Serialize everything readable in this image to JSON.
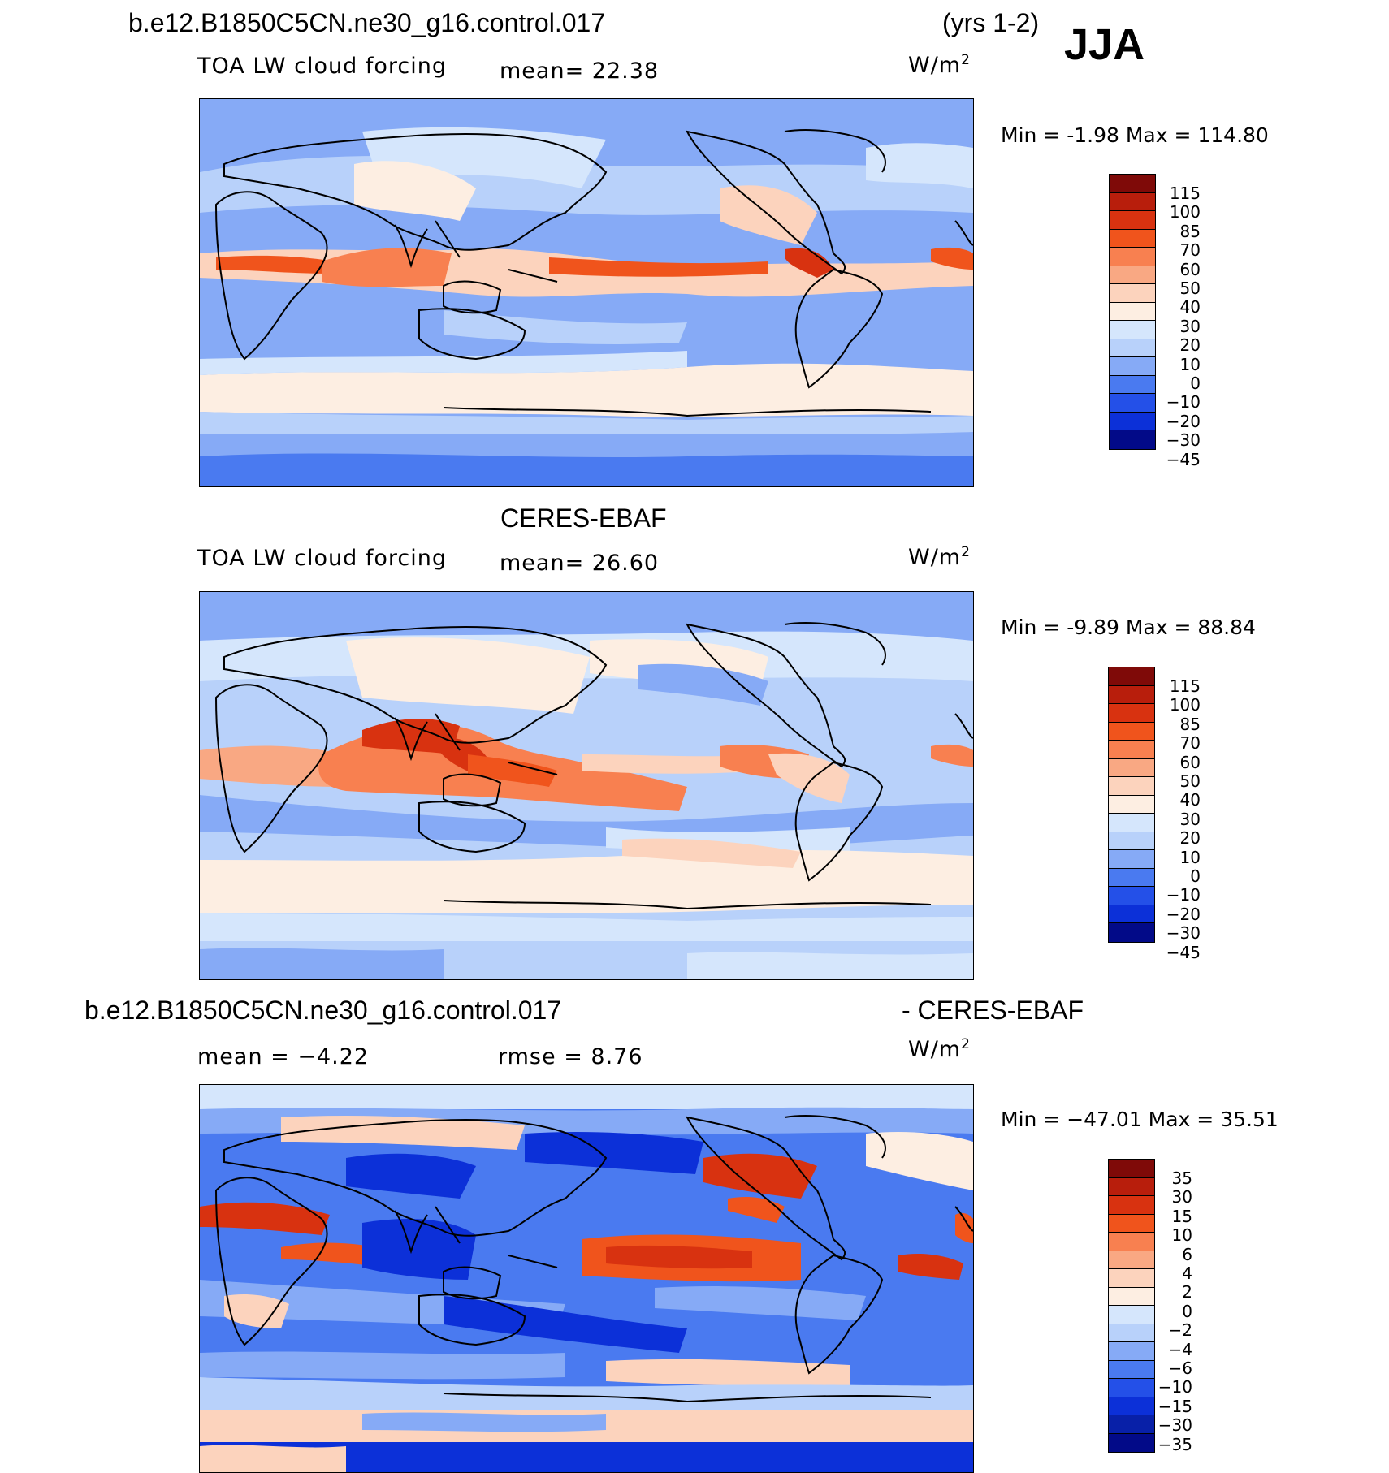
{
  "header": {
    "case_name": "b.e12.B1850C5CN.ne30_g16.control.017",
    "years": "(yrs 1-2)",
    "season": "JJA"
  },
  "panels": [
    {
      "title": "",
      "variable": "TOA LW cloud forcing",
      "stat": "mean=   22.38",
      "units": "W/m",
      "minmax": "Min =   -1.98  Max  =  114.80",
      "colorbar_labels": [
        "115",
        "100",
        "85",
        "70",
        "60",
        "50",
        "40",
        "30",
        "20",
        "10",
        "0",
        "−10",
        "−20",
        "−30",
        "−45"
      ]
    },
    {
      "title": "CERES-EBAF",
      "variable": "TOA LW cloud forcing",
      "stat": "mean=   26.60",
      "units": "W/m",
      "minmax": "Min =   -9.89  Max  =   88.84",
      "colorbar_labels": [
        "115",
        "100",
        "85",
        "70",
        "60",
        "50",
        "40",
        "30",
        "20",
        "10",
        "0",
        "−10",
        "−20",
        "−30",
        "−45"
      ]
    },
    {
      "title_left": "b.e12.B1850C5CN.ne30_g16.control.017",
      "title_right": "- CERES-EBAF",
      "stat_mean": "mean  =    −4.22",
      "stat_rmse": "rmse  =     8.76",
      "units": "W/m",
      "minmax": "Min  = −47.01  Max  =    35.51",
      "colorbar_labels": [
        "35",
        "30",
        "15",
        "10",
        "6",
        "4",
        "2",
        "0",
        "−2",
        "−4",
        "−6",
        "−10",
        "−15",
        "−30",
        "−35"
      ]
    }
  ],
  "units_exponent": "2",
  "colors": {
    "fill_warm": [
      "#7f0a08",
      "#b81e0c",
      "#d83210",
      "#f0541c",
      "#f88050",
      "#f9a883",
      "#fcd3bd",
      "#fdeee2"
    ],
    "fill_cool": [
      "#d5e6fc",
      "#b8d1fa",
      "#86aaf6",
      "#4a7af0",
      "#2450e8",
      "#0c30d8",
      "#0820a8",
      "#020a88"
    ]
  }
}
